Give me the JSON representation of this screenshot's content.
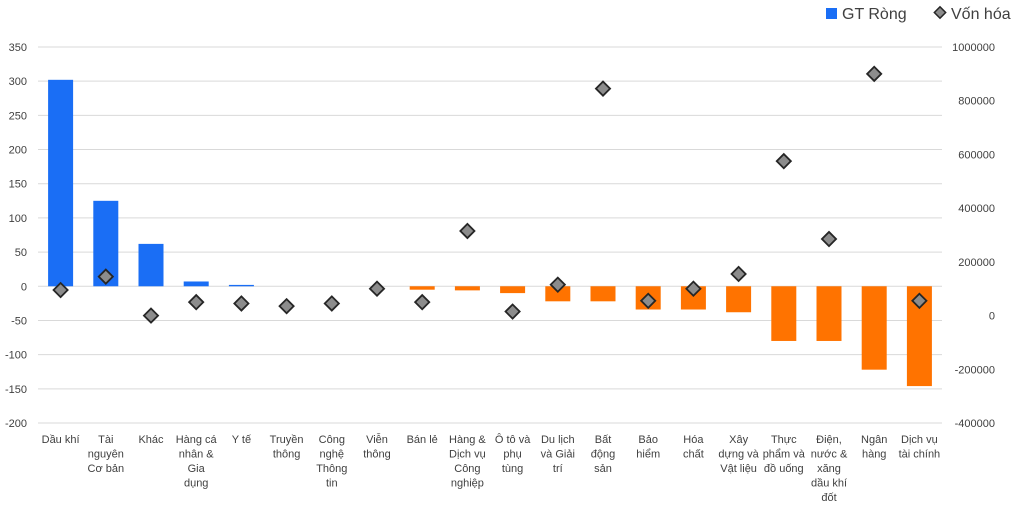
{
  "chart_data": {
    "type": "bar",
    "title": "",
    "xlabel": "",
    "ylabel": "",
    "ylim": [
      -200,
      350
    ],
    "y_ticks": [
      350,
      300,
      250,
      200,
      150,
      100,
      50,
      0,
      -50,
      -100,
      -150,
      -200
    ],
    "y2lim": [
      -400000,
      1000000
    ],
    "y2_ticks": [
      1000000,
      800000,
      600000,
      400000,
      200000,
      0,
      -200000,
      -400000
    ],
    "grid": true,
    "legend_position": "top-right",
    "categories": [
      "Dầu khí",
      "Tài nguyên Cơ bản",
      "Khác",
      "Hàng cá nhân & Gia dụng",
      "Y tế",
      "Truyền thông",
      "Công nghệ Thông tin",
      "Viễn thông",
      "Bán lẻ",
      "Hàng & Dịch vụ Công nghiệp",
      "Ô tô và phụ tùng",
      "Du lịch và Giải trí",
      "Bất động sản",
      "Bảo hiểm",
      "Hóa chất",
      "Xây dựng và Vật liệu",
      "Thực phẩm và đồ uống",
      "Điện, nước & xăng dầu khí đốt",
      "Ngân hàng",
      "Dịch vụ tài chính"
    ],
    "category_lines": [
      [
        "Dầu khí"
      ],
      [
        "Tài",
        "nguyên",
        "Cơ bản"
      ],
      [
        "Khác"
      ],
      [
        "Hàng cá",
        "nhân &",
        "Gia",
        "dụng"
      ],
      [
        "Y tế"
      ],
      [
        "Truyền",
        "thông"
      ],
      [
        "Công",
        "nghệ",
        "Thông",
        "tin"
      ],
      [
        "Viễn",
        "thông"
      ],
      [
        "Bán lẻ"
      ],
      [
        "Hàng &",
        "Dịch vụ",
        "Công",
        "nghiệp"
      ],
      [
        "Ô tô và",
        "phụ",
        "tùng"
      ],
      [
        "Du lịch",
        "và Giải",
        "trí"
      ],
      [
        "Bất",
        "động",
        "sản"
      ],
      [
        "Bảo",
        "hiểm"
      ],
      [
        "Hóa",
        "chất"
      ],
      [
        "Xây",
        "dựng và",
        "Vật liệu"
      ],
      [
        "Thực",
        "phẩm và",
        "đồ uống"
      ],
      [
        "Điện,",
        "nước &",
        "xăng",
        "dầu khí",
        "đốt"
      ],
      [
        "Ngân",
        "hàng"
      ],
      [
        "Dịch vụ",
        "tài chính"
      ]
    ],
    "series": [
      {
        "name": "GT Ròng",
        "type": "bar",
        "axis": "left",
        "values": [
          302,
          125,
          62,
          7,
          2,
          0,
          0,
          0,
          -5,
          -6,
          -10,
          -22,
          -22,
          -34,
          -34,
          -38,
          -80,
          -80,
          -122,
          -146
        ]
      },
      {
        "name": "Vốn hóa",
        "type": "scatter",
        "axis": "right",
        "values": [
          95000,
          145000,
          0,
          50000,
          45000,
          35000,
          45000,
          100000,
          50000,
          315000,
          15000,
          115000,
          845000,
          55000,
          100000,
          155000,
          575000,
          285000,
          900000,
          55000
        ]
      }
    ],
    "colors": {
      "positive": "#1a6ef5",
      "negative": "#ff7300",
      "marker_fill": "#8c8c8c",
      "marker_stroke": "#262626",
      "legend_bar": "#1a6ef5"
    }
  }
}
